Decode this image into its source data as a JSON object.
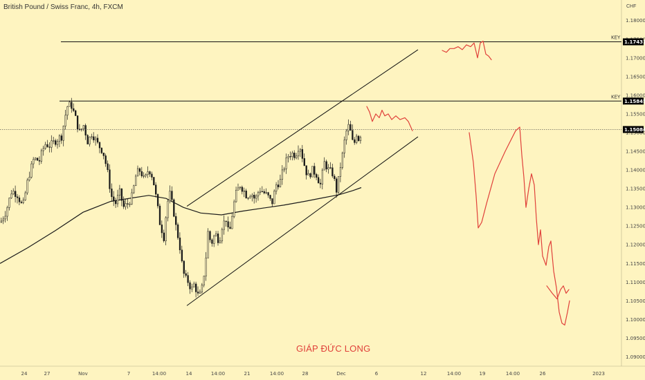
{
  "header": {
    "title": "British Pound / Swiss Franc, 4h, FXCM",
    "currency": "CHF"
  },
  "watermark": "GIÁP ĐỨC LONG",
  "colors": {
    "background": "#fef4c0",
    "candle": "#1a1a1a",
    "projection": "#e0403a",
    "badge": "#000000"
  },
  "chart_data": {
    "type": "candlestick",
    "symbol": "GBPCHF",
    "timeframe": "4h",
    "y_axis": {
      "ylim": [
        1.0875,
        1.1855
      ],
      "ticks": [
        "1.18000",
        "1.17500",
        "1.17000",
        "1.16500",
        "1.16000",
        "1.15500",
        "1.15000",
        "1.14500",
        "1.14000",
        "1.13500",
        "1.13000",
        "1.12500",
        "1.12000",
        "1.11500",
        "1.11000",
        "1.10500",
        "1.10000",
        "1.09500",
        "1.09000"
      ]
    },
    "x_axis": {
      "xlim": [
        0,
        930
      ],
      "ticks": [
        {
          "label": "24",
          "x": 35
        },
        {
          "label": "27",
          "x": 68
        },
        {
          "label": "Nov",
          "x": 120
        },
        {
          "label": "7",
          "x": 186
        },
        {
          "label": "14:00",
          "x": 230
        },
        {
          "label": "14",
          "x": 273
        },
        {
          "label": "14:00",
          "x": 315
        },
        {
          "label": "21",
          "x": 357
        },
        {
          "label": "14:00",
          "x": 400
        },
        {
          "label": "28",
          "x": 441
        },
        {
          "label": "Dec",
          "x": 493
        },
        {
          "label": "6",
          "x": 544
        },
        {
          "label": "12",
          "x": 612
        },
        {
          "label": "14:00",
          "x": 656
        },
        {
          "label": "19",
          "x": 697
        },
        {
          "label": "14:00",
          "x": 741
        },
        {
          "label": "26",
          "x": 784
        },
        {
          "label": "2023",
          "x": 865
        }
      ]
    },
    "key_levels": [
      {
        "label": "KEY",
        "price": 1.17431,
        "value_label": "1.17431",
        "x_start": 88
      },
      {
        "label": "KEY",
        "price": 1.15845,
        "value_label": "1.15845",
        "x_start": 86
      }
    ],
    "current_price": {
      "price": 1.15084,
      "value_label": "1.15084"
    },
    "channel": {
      "upper": [
        [
          270,
          1.1303
        ],
        [
          604,
          1.1722
        ]
      ],
      "lower": [
        [
          270,
          1.1037
        ],
        [
          604,
          1.1489
        ]
      ]
    },
    "moving_average": [
      [
        0,
        1.115
      ],
      [
        40,
        1.1192
      ],
      [
        80,
        1.1238
      ],
      [
        120,
        1.1287
      ],
      [
        160,
        1.1316
      ],
      [
        190,
        1.1325
      ],
      [
        215,
        1.1332
      ],
      [
        240,
        1.1324
      ],
      [
        265,
        1.13
      ],
      [
        290,
        1.1285
      ],
      [
        320,
        1.128
      ],
      [
        350,
        1.129
      ],
      [
        380,
        1.1298
      ],
      [
        410,
        1.1306
      ],
      [
        440,
        1.1316
      ],
      [
        465,
        1.1325
      ],
      [
        490,
        1.1334
      ],
      [
        510,
        1.1345
      ],
      [
        522,
        1.1353
      ]
    ],
    "price_path": [
      [
        0,
        1.126
      ],
      [
        8,
        1.129
      ],
      [
        16,
        1.1345
      ],
      [
        24,
        1.1335
      ],
      [
        32,
        1.13
      ],
      [
        40,
        1.138
      ],
      [
        48,
        1.143
      ],
      [
        56,
        1.1425
      ],
      [
        64,
        1.147
      ],
      [
        72,
        1.1465
      ],
      [
        80,
        1.148
      ],
      [
        88,
        1.149
      ],
      [
        96,
        1.157
      ],
      [
        102,
        1.1575
      ],
      [
        108,
        1.154
      ],
      [
        114,
        1.15
      ],
      [
        120,
        1.152
      ],
      [
        126,
        1.1475
      ],
      [
        132,
        1.15
      ],
      [
        140,
        1.147
      ],
      [
        148,
        1.145
      ],
      [
        154,
        1.14
      ],
      [
        160,
        1.133
      ],
      [
        166,
        1.131
      ],
      [
        172,
        1.134
      ],
      [
        178,
        1.13
      ],
      [
        184,
        1.131
      ],
      [
        190,
        1.133
      ],
      [
        196,
        1.139
      ],
      [
        202,
        1.14
      ],
      [
        208,
        1.137
      ],
      [
        214,
        1.1405
      ],
      [
        220,
        1.138
      ],
      [
        226,
        1.131
      ],
      [
        230,
        1.126
      ],
      [
        236,
        1.122
      ],
      [
        240,
        1.13
      ],
      [
        244,
        1.134
      ],
      [
        250,
        1.129
      ],
      [
        254,
        1.124
      ],
      [
        258,
        1.121
      ],
      [
        262,
        1.115
      ],
      [
        266,
        1.111
      ],
      [
        270,
        1.1105
      ],
      [
        276,
        1.108
      ],
      [
        280,
        1.1095
      ],
      [
        286,
        1.106
      ],
      [
        290,
        1.107
      ],
      [
        296,
        1.115
      ],
      [
        300,
        1.124
      ],
      [
        304,
        1.12
      ],
      [
        310,
        1.123
      ],
      [
        316,
        1.121
      ],
      [
        320,
        1.125
      ],
      [
        326,
        1.127
      ],
      [
        330,
        1.122
      ],
      [
        336,
        1.13
      ],
      [
        340,
        1.1335
      ],
      [
        346,
        1.136
      ],
      [
        350,
        1.135
      ],
      [
        356,
        1.133
      ],
      [
        362,
        1.134
      ],
      [
        368,
        1.132
      ],
      [
        374,
        1.135
      ],
      [
        380,
        1.134
      ],
      [
        386,
        1.133
      ],
      [
        392,
        1.131
      ],
      [
        398,
        1.136
      ],
      [
        404,
        1.137
      ],
      [
        410,
        1.141
      ],
      [
        416,
        1.144
      ],
      [
        420,
        1.1445
      ],
      [
        426,
        1.144
      ],
      [
        432,
        1.147
      ],
      [
        438,
        1.142
      ],
      [
        444,
        1.138
      ],
      [
        450,
        1.14
      ],
      [
        456,
        1.139
      ],
      [
        462,
        1.136
      ],
      [
        468,
        1.142
      ],
      [
        474,
        1.14
      ],
      [
        480,
        1.139
      ],
      [
        486,
        1.134
      ],
      [
        490,
        1.14
      ],
      [
        494,
        1.144
      ],
      [
        498,
        1.149
      ],
      [
        502,
        1.152
      ],
      [
        506,
        1.15
      ],
      [
        510,
        1.146
      ],
      [
        514,
        1.15
      ],
      [
        518,
        1.148
      ],
      [
        522,
        1.1508
      ]
    ],
    "projections": [
      [
        [
          530,
          1.157
        ],
        [
          534,
          1.1555
        ],
        [
          538,
          1.153
        ],
        [
          543,
          1.155
        ],
        [
          548,
          1.154
        ],
        [
          552,
          1.156
        ],
        [
          556,
          1.1545
        ],
        [
          561,
          1.155
        ],
        [
          566,
          1.1535
        ],
        [
          572,
          1.1545
        ],
        [
          578,
          1.1535
        ],
        [
          585,
          1.154
        ],
        [
          590,
          1.153
        ],
        [
          596,
          1.1505
        ]
      ],
      [
        [
          639,
          1.172
        ],
        [
          645,
          1.1715
        ],
        [
          650,
          1.1725
        ],
        [
          656,
          1.1725
        ],
        [
          662,
          1.173
        ],
        [
          668,
          1.1722
        ],
        [
          674,
          1.1735
        ],
        [
          680,
          1.173
        ],
        [
          685,
          1.174
        ],
        [
          690,
          1.17
        ],
        [
          694,
          1.174
        ],
        [
          698,
          1.1745
        ],
        [
          702,
          1.171
        ],
        [
          706,
          1.1705
        ],
        [
          710,
          1.1695
        ]
      ],
      [
        [
          678,
          1.15
        ],
        [
          684,
          1.142
        ],
        [
          688,
          1.133
        ],
        [
          691,
          1.1245
        ],
        [
          696,
          1.126
        ],
        [
          703,
          1.131
        ],
        [
          715,
          1.139
        ],
        [
          730,
          1.145
        ],
        [
          745,
          1.1505
        ],
        [
          751,
          1.1515
        ],
        [
          754,
          1.144
        ],
        [
          757,
          1.138
        ],
        [
          760,
          1.13
        ],
        [
          764,
          1.135
        ],
        [
          768,
          1.139
        ],
        [
          772,
          1.136
        ],
        [
          775,
          1.127
        ],
        [
          778,
          1.12
        ],
        [
          781,
          1.124
        ],
        [
          784,
          1.117
        ],
        [
          789,
          1.1145
        ],
        [
          793,
          1.1195
        ],
        [
          796,
          1.121
        ],
        [
          800,
          1.113
        ],
        [
          804,
          1.1085
        ],
        [
          808,
          1.102
        ],
        [
          812,
          1.099
        ],
        [
          816,
          1.0985
        ],
        [
          820,
          1.102
        ],
        [
          823,
          1.105
        ]
      ],
      [
        [
          790,
          1.109
        ],
        [
          798,
          1.107
        ],
        [
          805,
          1.1055
        ],
        [
          810,
          1.108
        ],
        [
          814,
          1.109
        ],
        [
          818,
          1.107
        ],
        [
          822,
          1.108
        ]
      ]
    ]
  }
}
